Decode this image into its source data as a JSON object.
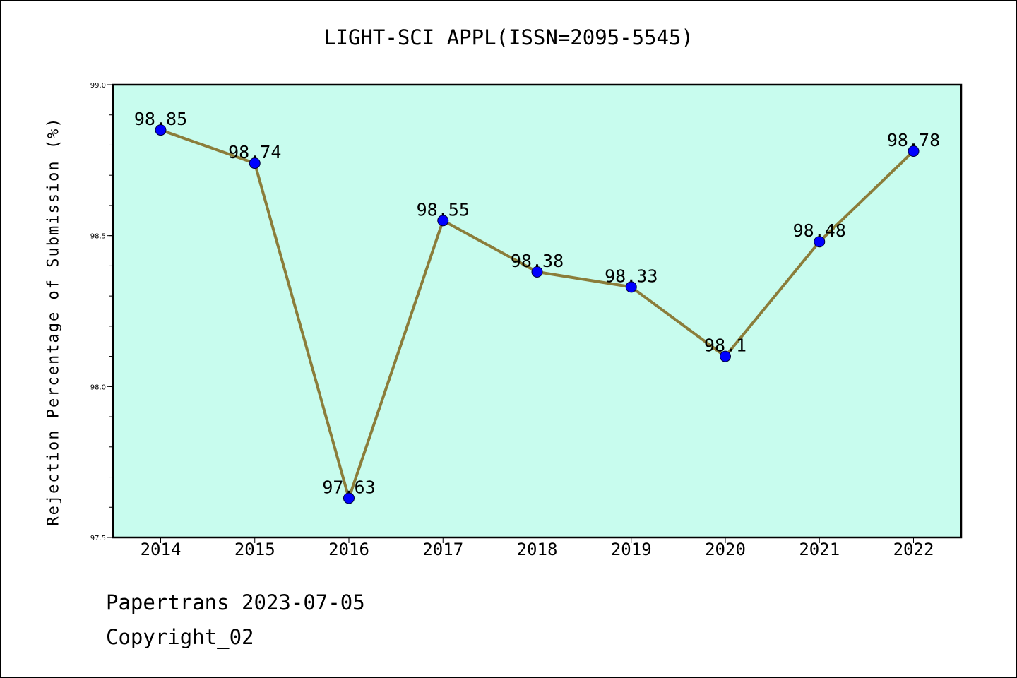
{
  "chart_data": {
    "type": "line",
    "title": "LIGHT-SCI APPL(ISSN=2095-5545)",
    "xlabel": "",
    "ylabel": "Rejection Percentage of Submission (%)",
    "categories": [
      "2014",
      "2015",
      "2016",
      "2017",
      "2018",
      "2019",
      "2020",
      "2021",
      "2022"
    ],
    "series": [
      {
        "name": "Rejection Percentage",
        "values": [
          98.85,
          98.74,
          97.63,
          98.55,
          98.38,
          98.33,
          98.1,
          98.48,
          98.78
        ]
      }
    ],
    "data_labels": [
      "98.85",
      "98.74",
      "97.63",
      "98.55",
      "98.38",
      "98.33",
      "98.1",
      "98.48",
      "98.78"
    ],
    "ylim": [
      97.5,
      99.0
    ],
    "y_ticks": [
      "97.5",
      "98.0",
      "98.5",
      "99.0"
    ],
    "y_tick_values": [
      97.5,
      98.0,
      98.5,
      99.0
    ],
    "y_minor_step": 0.1,
    "grid": false,
    "colors": {
      "background": "#c8fcee",
      "line": "#8b7d3a",
      "marker": "#0000ff"
    }
  },
  "footer": {
    "date_line": "Papertrans 2023-07-05",
    "copyright_line": "Copyright_02"
  }
}
